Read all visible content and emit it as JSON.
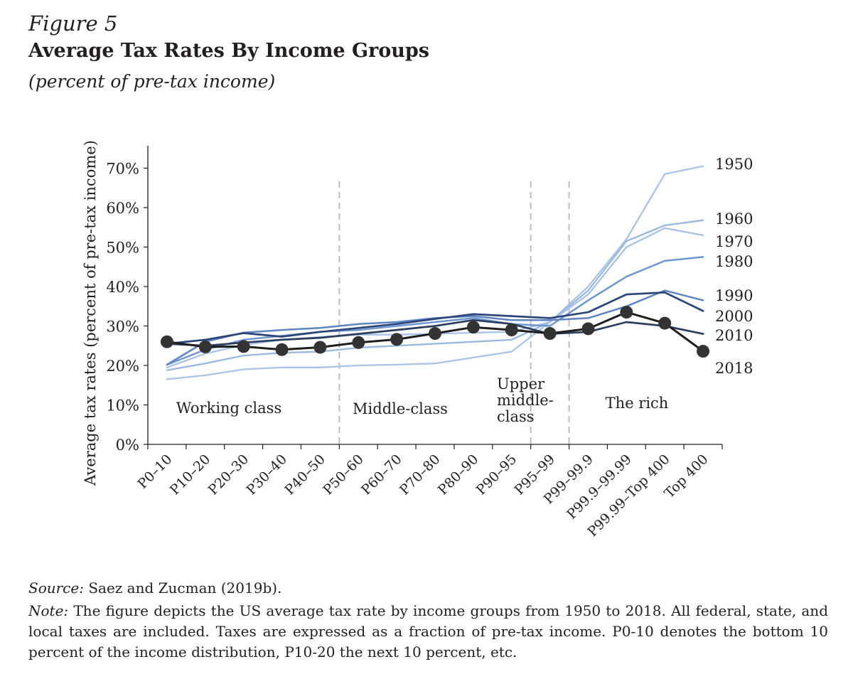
{
  "figure": {
    "label": "Figure 5",
    "title": "Average Tax Rates By Income Groups",
    "subtitle": "(percent of pre-tax income)"
  },
  "footer": {
    "source_label": "Source:",
    "source_text": " Saez and Zucman (2019b).",
    "note_label": "Note:",
    "note_text": " The figure depicts the US average tax rate by income groups from 1950 to 2018. All federal, state, and local taxes are included. Taxes are expressed as a fraction of pre-tax income. P0-10 denotes the bottom 10 percent of the income distribution, P10-20 the next 10 percent, etc."
  },
  "chart_data": {
    "type": "line",
    "ylabel": "Average tax rates (percent of pre-tax income)",
    "xlabel": "",
    "ylim": [
      0,
      75
    ],
    "yticks": [
      0,
      10,
      20,
      30,
      40,
      50,
      60,
      70
    ],
    "ytick_labels": [
      "0%",
      "10%",
      "20%",
      "30%",
      "40%",
      "50%",
      "60%",
      "70%"
    ],
    "categories": [
      "P0–10",
      "P10–20",
      "P20–30",
      "P30–40",
      "P40–50",
      "P50–60",
      "P60–70",
      "P70–80",
      "P80–90",
      "P90–95",
      "P95–99",
      "P99–99.9",
      "P99.9–99.99",
      "P99.99–Top 400",
      "Top 400"
    ],
    "group_dividers_after": [
      "P40–50",
      "P90–95",
      "P95–99"
    ],
    "groups": [
      {
        "lines": [
          "Working class"
        ]
      },
      {
        "lines": [
          "Middle-class"
        ]
      },
      {
        "lines": [
          "Upper",
          "middle-",
          "class"
        ]
      },
      {
        "lines": [
          "The rich"
        ]
      }
    ],
    "colors": {
      "1950": "#a9c4e6",
      "1960": "#99b8e0",
      "1970": "#a7c2e6",
      "1980": "#6f96cf",
      "1990": "#5d85c4",
      "2000": "#2c4678",
      "2010": "#2c3e5e",
      "2018": "#1f1f1f",
      "marker": "#333333",
      "divider": "#bdbdbd",
      "axis": "#231f20"
    },
    "series": [
      {
        "name": "1950",
        "values": [
          16.5,
          17.5,
          19,
          19.5,
          19.5,
          20,
          20.2,
          20.5,
          22,
          23.5,
          31,
          40,
          52,
          68.5,
          70.5
        ]
      },
      {
        "name": "1960",
        "values": [
          18.8,
          20.5,
          22.5,
          23.2,
          23.5,
          24.5,
          25,
          25.5,
          26,
          26.5,
          31,
          39,
          51.5,
          55.5,
          56.8
        ]
      },
      {
        "name": "1970",
        "values": [
          19.5,
          23,
          25.2,
          26.5,
          27.2,
          27.8,
          27.8,
          28,
          28.3,
          28.5,
          31,
          38,
          50,
          54.8,
          53
        ]
      },
      {
        "name": "1980",
        "values": [
          20.2,
          24,
          26.5,
          27.5,
          28.5,
          29,
          30,
          31,
          32,
          30.5,
          30,
          36.5,
          42.5,
          46.5,
          47.5
        ]
      },
      {
        "name": "1990",
        "values": [
          20.2,
          26,
          28.3,
          29,
          29.5,
          30.5,
          31,
          32,
          32.5,
          31.5,
          31.5,
          32,
          35,
          39,
          36.5
        ]
      },
      {
        "name": "2000",
        "values": [
          25.5,
          26.5,
          28.2,
          27.3,
          28.5,
          29.5,
          30.5,
          31.8,
          33,
          32.5,
          32,
          33.5,
          38,
          38.5,
          33.8
        ]
      },
      {
        "name": "2010",
        "values": [
          25.5,
          25,
          25.8,
          26.5,
          27,
          28,
          29,
          30,
          31.5,
          30.5,
          28,
          28.5,
          31,
          30,
          28
        ]
      },
      {
        "name": "2018",
        "values": [
          26,
          24.7,
          24.8,
          24,
          24.6,
          25.8,
          26.6,
          28.1,
          29.7,
          29,
          28.1,
          29.3,
          33.5,
          30.7,
          23.6
        ],
        "markers": true
      }
    ],
    "legend": "line-end labels, right"
  }
}
